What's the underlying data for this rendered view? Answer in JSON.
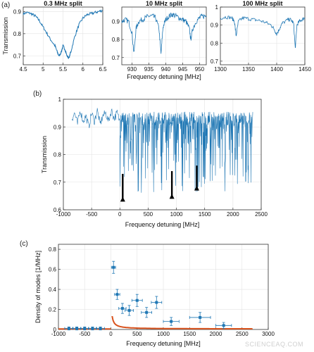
{
  "panel_labels": [
    "(a)",
    "(b)",
    "(c)"
  ],
  "watermark": "SCIENCEAQ.COM",
  "colors": {
    "trace": "#1f77b4",
    "fit": "#d9531e",
    "axis": "#333333",
    "grid": "#e3e3e3"
  },
  "chart_data": [
    {
      "type": "line",
      "title": "0.3 MHz split",
      "xlabel": "",
      "ylabel": "Transmission",
      "xlim": [
        4.5,
        6.5
      ],
      "ylim": [
        0.66,
        0.92
      ],
      "xticks": [
        "4.5",
        "5",
        "5.5",
        "6",
        "6.5"
      ],
      "xtick_values": [
        4.5,
        5,
        5.5,
        6,
        6.5
      ],
      "yticks": [
        "0.7",
        "0.8",
        "0.9"
      ],
      "ytick_values": [
        0.7,
        0.8,
        0.9
      ],
      "grid": true,
      "series": [
        {
          "x": [
            4.5,
            4.6,
            4.7,
            4.8,
            4.9,
            5.0,
            5.1,
            5.2,
            5.3,
            5.35,
            5.4,
            5.45,
            5.5,
            5.55,
            5.6,
            5.65,
            5.7,
            5.8,
            5.9,
            6.0,
            6.1,
            6.2,
            6.3,
            6.4,
            6.5
          ],
          "values": [
            0.89,
            0.895,
            0.89,
            0.88,
            0.86,
            0.83,
            0.8,
            0.77,
            0.745,
            0.72,
            0.7,
            0.715,
            0.745,
            0.73,
            0.7,
            0.69,
            0.72,
            0.79,
            0.84,
            0.87,
            0.885,
            0.89,
            0.895,
            0.9,
            0.905
          ]
        }
      ]
    },
    {
      "type": "line",
      "title": "10 MHz split",
      "xlabel": "Frequency detuning [MHz]",
      "ylabel": "",
      "xlim": [
        927,
        952
      ],
      "ylim": [
        0.66,
        0.98
      ],
      "xticks": [
        "930",
        "935",
        "940",
        "945",
        "950"
      ],
      "xtick_values": [
        930,
        935,
        940,
        945,
        950
      ],
      "yticks": [
        "0.7",
        "0.8",
        "0.9"
      ],
      "ytick_values": [
        0.7,
        0.8,
        0.9
      ],
      "grid": true,
      "series": [
        {
          "x": [
            927,
            928,
            929,
            930,
            930.6,
            931.2,
            932,
            933,
            934,
            935,
            936,
            937,
            938,
            938.6,
            939.2,
            940,
            941,
            942,
            943,
            944,
            945,
            946,
            947,
            947.4,
            948,
            949,
            950,
            951,
            952
          ],
          "values": [
            0.9,
            0.91,
            0.9,
            0.84,
            0.72,
            0.86,
            0.9,
            0.91,
            0.92,
            0.93,
            0.93,
            0.92,
            0.86,
            0.72,
            0.87,
            0.91,
            0.93,
            0.94,
            0.93,
            0.92,
            0.91,
            0.9,
            0.86,
            0.8,
            0.86,
            0.9,
            0.92,
            0.93,
            0.93
          ]
        }
      ]
    },
    {
      "type": "line",
      "title": "100 MHz split",
      "xlabel": "",
      "ylabel": "",
      "xlim": [
        1300,
        1450
      ],
      "ylim": [
        0.68,
        1.0
      ],
      "xticks": [
        "1300",
        "1350",
        "1400",
        "1450"
      ],
      "xtick_values": [
        1300,
        1350,
        1400,
        1450
      ],
      "yticks": [
        "0.7",
        "0.8",
        "0.9",
        "1"
      ],
      "ytick_values": [
        0.7,
        0.8,
        0.9,
        1.0
      ],
      "grid": true,
      "series": [
        {
          "x": [
            1300,
            1310,
            1320,
            1325,
            1328,
            1332,
            1340,
            1350,
            1360,
            1370,
            1380,
            1390,
            1395,
            1400,
            1405,
            1410,
            1420,
            1425,
            1430,
            1433,
            1436,
            1440,
            1445,
            1450
          ],
          "values": [
            0.94,
            0.945,
            0.94,
            0.92,
            0.84,
            0.92,
            0.94,
            0.935,
            0.93,
            0.925,
            0.915,
            0.9,
            0.88,
            0.85,
            0.88,
            0.91,
            0.93,
            0.93,
            0.91,
            0.77,
            0.9,
            0.92,
            0.93,
            0.94
          ]
        }
      ]
    },
    {
      "type": "line",
      "title": "",
      "xlabel": "Frequency detuning [MHz]",
      "ylabel": "Transmission",
      "xlim": [
        -1000,
        2500
      ],
      "ylim": [
        0.6,
        1.0
      ],
      "xticks": [
        "-1000",
        "-500",
        "0",
        "500",
        "1000",
        "1500",
        "2000",
        "2500"
      ],
      "xtick_values": [
        -1000,
        -500,
        0,
        500,
        1000,
        1500,
        2000,
        2500
      ],
      "yticks": [
        "0.6",
        "0.7",
        "0.8",
        "0.9",
        "1"
      ],
      "ytick_values": [
        0.6,
        0.7,
        0.8,
        0.9,
        1.0
      ],
      "grid": true,
      "trace_range": [
        -850,
        2350
      ],
      "series": [
        {
          "x": [
            -850,
            -800,
            -750,
            -700,
            -650,
            -600,
            -550,
            -500,
            -450,
            -400,
            -350,
            -300,
            -250,
            -200,
            -150,
            -100,
            -50,
            0
          ],
          "values": [
            0.93,
            0.95,
            0.91,
            0.96,
            0.92,
            0.94,
            0.9,
            0.95,
            0.92,
            0.96,
            0.91,
            0.94,
            0.95,
            0.92,
            0.96,
            0.93,
            0.95,
            0.92
          ]
        }
      ],
      "annotations": [
        {
          "type": "arrow",
          "x": 50,
          "y_tail": 0.73,
          "y_head": 0.645
        },
        {
          "type": "arrow",
          "x": 920,
          "y_tail": 0.74,
          "y_head": 0.655
        },
        {
          "type": "arrow",
          "x": 1360,
          "y_tail": 0.76,
          "y_head": 0.685
        }
      ]
    },
    {
      "type": "scatter",
      "title": "",
      "xlabel": "Frequency detuning [MHz]",
      "ylabel": "Density of modes [1/MHz]",
      "xlim": [
        -1000,
        3000
      ],
      "ylim": [
        0,
        0.85
      ],
      "xticks": [
        "-1000",
        "-500",
        "0",
        "500",
        "1000",
        "1500",
        "2000",
        "2500",
        "3000"
      ],
      "xtick_values": [
        -1000,
        -500,
        0,
        500,
        1000,
        1500,
        2000,
        2500,
        3000
      ],
      "yticks": [
        "0",
        "0.2",
        "0.4",
        "0.6",
        "0.8"
      ],
      "ytick_values": [
        0,
        0.2,
        0.4,
        0.6,
        0.8
      ],
      "grid": true,
      "series": [
        {
          "x": [
            -800,
            -650,
            -500,
            -350,
            -200,
            50,
            120,
            220,
            350,
            500,
            680,
            870,
            1150,
            1700,
            2150
          ],
          "values": [
            0.01,
            0.01,
            0.01,
            0.01,
            0.01,
            0.62,
            0.35,
            0.21,
            0.19,
            0.29,
            0.17,
            0.27,
            0.08,
            0.12,
            0.04
          ],
          "yerr": [
            0.015,
            0.015,
            0.015,
            0.015,
            0.015,
            0.06,
            0.05,
            0.05,
            0.05,
            0.06,
            0.05,
            0.06,
            0.04,
            0.05,
            0.03
          ],
          "xerr": [
            80,
            80,
            80,
            80,
            80,
            40,
            50,
            70,
            80,
            100,
            100,
            100,
            150,
            200,
            150
          ]
        }
      ],
      "fit": {
        "pre": {
          "x_start": -1000,
          "x_end": 0,
          "y": 0.005
        },
        "x_start": 25,
        "x_end": 2700,
        "a": 0.005,
        "b": 4.5,
        "x0": 10
      }
    }
  ]
}
